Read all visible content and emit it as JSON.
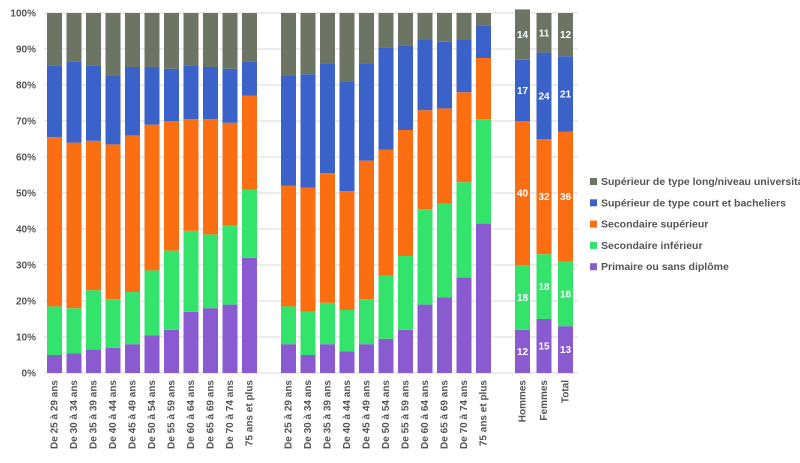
{
  "chart_data": {
    "type": "bar",
    "stacked": true,
    "ylim": [
      0,
      100
    ],
    "yticks": [
      "0%",
      "10%",
      "20%",
      "30%",
      "40%",
      "50%",
      "60%",
      "70%",
      "80%",
      "90%",
      "100%"
    ],
    "legend_position": "right",
    "groups": [
      {
        "categories": [
          "De 25 à 29 ans",
          "De 30 à 34 ans",
          "De 35 à 39 ans",
          "De 40 à 44 ans",
          "De 45 à 49 ans",
          "De 50 à 54 ans",
          "De 55 à 59 ans",
          "De 60 à 64 ans",
          "De 65 à 69 ans",
          "De 70 à 74 ans",
          "75 ans et plus"
        ],
        "series": [
          {
            "name": "Primaire ou sans diplôme",
            "color": "#8a5ad0",
            "values": [
              5,
              5.5,
              6.5,
              7,
              8,
              10.5,
              12,
              17,
              18,
              19,
              32
            ]
          },
          {
            "name": "Secondaire inférieur",
            "color": "#33e36b",
            "values": [
              13.5,
              12.5,
              16.5,
              13.5,
              14.5,
              18,
              22,
              22.5,
              20.5,
              22,
              19
            ]
          },
          {
            "name": "Secondaire supérieur",
            "color": "#fb6e12",
            "values": [
              47,
              46,
              41.5,
              43,
              43.5,
              40.5,
              36,
              31,
              32,
              28.5,
              26
            ]
          },
          {
            "name": "Supérieur de type court et bacheliers",
            "color": "#3a62c9",
            "values": [
              20,
              22.5,
              21,
              19,
              19,
              16,
              14.5,
              15,
              14.5,
              15,
              9.5
            ]
          },
          {
            "name": "Supérieur de type long/niveau universitaire",
            "color": "#6c7463",
            "values": [
              14.5,
              13.5,
              14.5,
              17.5,
              15,
              15,
              15.5,
              14.5,
              15,
              15.5,
              13.5
            ]
          }
        ]
      },
      {
        "categories": [
          "De 25 à 29 ans",
          "De 30 à 34 ans",
          "De 35 à 39 ans",
          "De 40 à 44 ans",
          "De 45 à 49 ans",
          "De 50 à 54 ans",
          "De 55 à 59 ans",
          "De 60 à 64 ans",
          "De 65 à 69 ans",
          "De 70 à 74 ans",
          "75 ans et plus"
        ],
        "series": [
          {
            "name": "Primaire ou sans diplôme",
            "color": "#8a5ad0",
            "values": [
              8,
              5,
              8,
              6,
              8,
              9.5,
              12,
              19,
              21,
              26.5,
              41.5
            ]
          },
          {
            "name": "Secondaire inférieur",
            "color": "#33e36b",
            "values": [
              10.5,
              12,
              11.5,
              11.5,
              12.5,
              17.5,
              20.5,
              26.5,
              26,
              26.5,
              29
            ]
          },
          {
            "name": "Secondaire supérieur",
            "color": "#fb6e12",
            "values": [
              33.5,
              34.5,
              36,
              33,
              38.5,
              35,
              35,
              27.5,
              26.5,
              25,
              17
            ]
          },
          {
            "name": "Supérieur de type court et bacheliers",
            "color": "#3a62c9",
            "values": [
              30.5,
              31.5,
              30.5,
              30.5,
              27,
              28.5,
              23.5,
              19.5,
              18.5,
              14.5,
              9
            ]
          },
          {
            "name": "Supérieur de type long/niveau universitaire",
            "color": "#6c7463",
            "values": [
              17.5,
              17,
              14,
              19,
              14,
              9.5,
              9,
              7.5,
              8,
              7.5,
              3.5
            ]
          }
        ]
      },
      {
        "categories": [
          "Hommes",
          "Femmes",
          "Total"
        ],
        "series": [
          {
            "name": "Primaire ou sans diplôme",
            "color": "#8a5ad0",
            "values": [
              12,
              15,
              13
            ],
            "labels": [
              "12",
              "15",
              "13"
            ]
          },
          {
            "name": "Secondaire inférieur",
            "color": "#33e36b",
            "values": [
              18,
              18,
              18
            ],
            "labels": [
              "18",
              "18",
              "18"
            ]
          },
          {
            "name": "Secondaire supérieur",
            "color": "#fb6e12",
            "values": [
              40,
              32,
              36
            ],
            "labels": [
              "40",
              "32",
              "36"
            ]
          },
          {
            "name": "Supérieur de type court et bacheliers",
            "color": "#3a62c9",
            "values": [
              17,
              24,
              21
            ],
            "labels": [
              "17",
              "24",
              "21"
            ]
          },
          {
            "name": "Supérieur de type long/niveau universitaire",
            "color": "#6c7463",
            "values": [
              14,
              11,
              12
            ],
            "labels": [
              "14",
              "11",
              "12"
            ]
          }
        ]
      }
    ],
    "legend": [
      {
        "name": "Supérieur de type long/niveau universitaire",
        "color": "#6c7463"
      },
      {
        "name": "Supérieur de type court et bacheliers",
        "color": "#3a62c9"
      },
      {
        "name": "Secondaire supérieur",
        "color": "#fb6e12"
      },
      {
        "name": "Secondaire inférieur",
        "color": "#33e36b"
      },
      {
        "name": "Primaire ou sans diplôme",
        "color": "#8a5ad0"
      }
    ]
  }
}
